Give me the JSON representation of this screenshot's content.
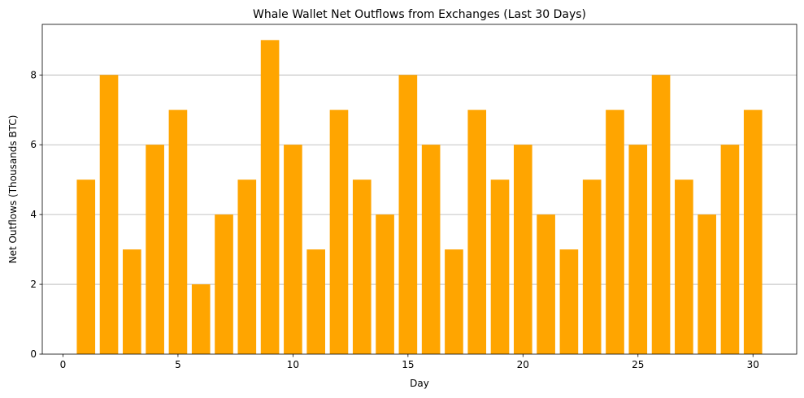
{
  "chart_data": {
    "type": "bar",
    "title": "Whale Wallet Net Outflows from Exchanges (Last 30 Days)",
    "xlabel": "Day",
    "ylabel": "Net Outflows (Thousands BTC)",
    "x": [
      1,
      2,
      3,
      4,
      5,
      6,
      7,
      8,
      9,
      10,
      11,
      12,
      13,
      14,
      15,
      16,
      17,
      18,
      19,
      20,
      21,
      22,
      23,
      24,
      25,
      26,
      27,
      28,
      29,
      30
    ],
    "values": [
      5,
      8,
      3,
      6,
      7,
      2,
      4,
      5,
      9,
      6,
      3,
      7,
      5,
      4,
      8,
      6,
      3,
      7,
      5,
      6,
      4,
      3,
      5,
      7,
      6,
      8,
      5,
      4,
      6,
      7
    ],
    "xlim": [
      -0.9,
      31.9
    ],
    "ylim": [
      0,
      9.45
    ],
    "xticks": [
      "0",
      "5",
      "10",
      "15",
      "20",
      "25",
      "30"
    ],
    "yticks": [
      "0",
      "2",
      "4",
      "6",
      "8"
    ],
    "grid": "y",
    "bar_color": "#FFA500"
  }
}
